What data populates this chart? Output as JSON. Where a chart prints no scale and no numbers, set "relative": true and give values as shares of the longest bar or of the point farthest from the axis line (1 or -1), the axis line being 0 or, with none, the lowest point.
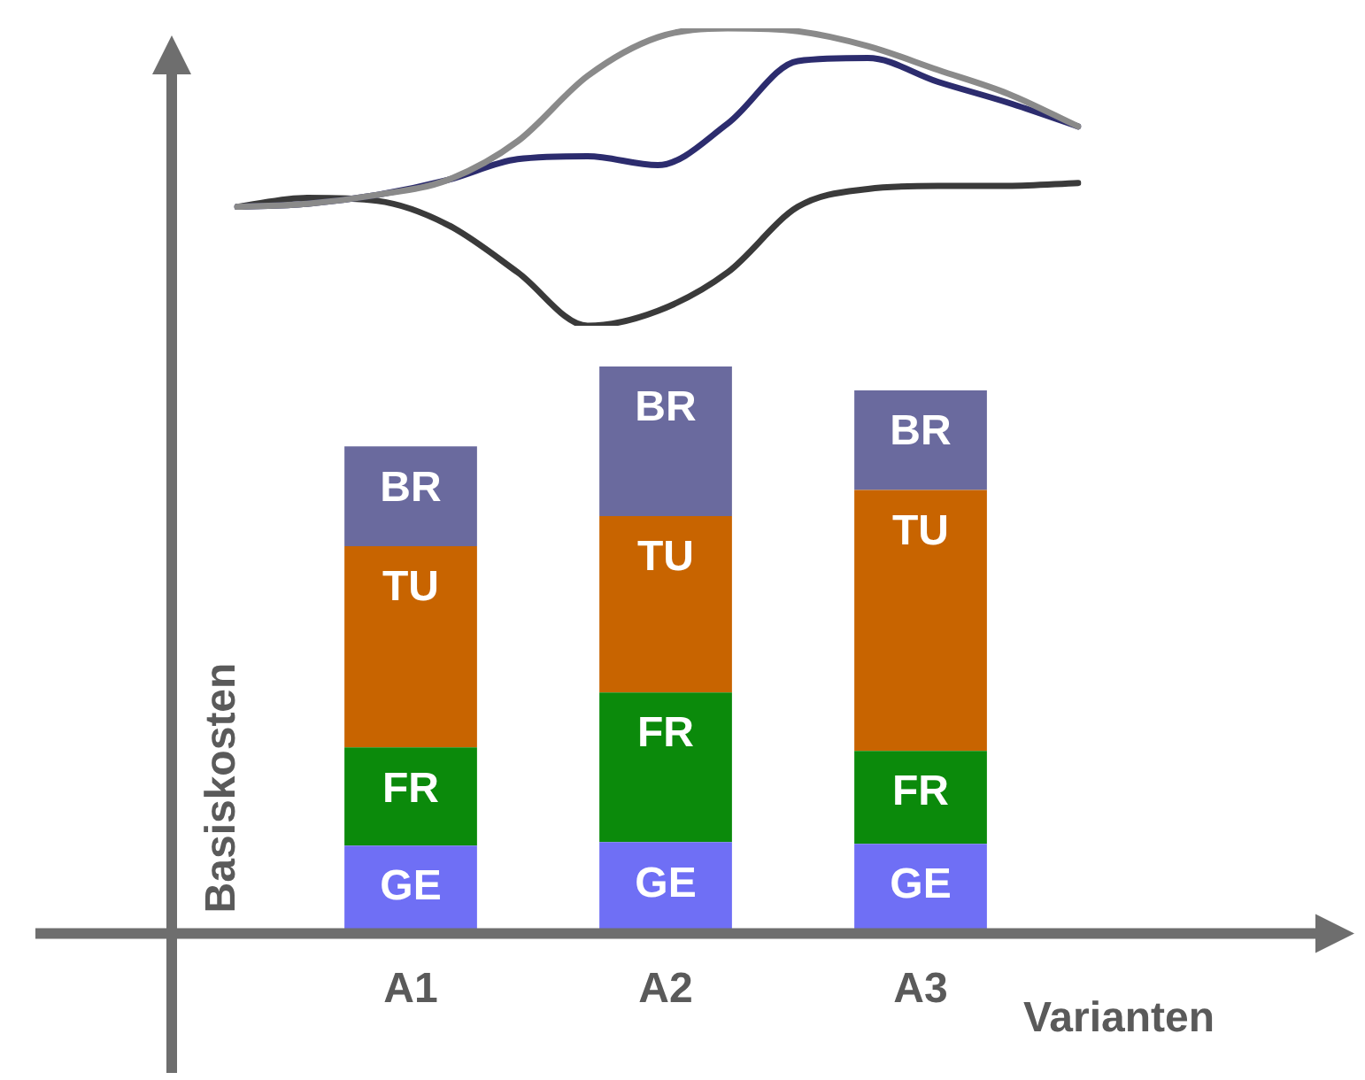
{
  "chart_data": [
    {
      "type": "bar",
      "stacked": true,
      "relative": true,
      "xlabel": "Varianten",
      "ylabel": "Basiskosten",
      "legend": false,
      "categories": [
        "A1",
        "A2",
        "A3"
      ],
      "series": [
        {
          "name": "GE",
          "color": "#6f6ff5",
          "values": [
            0.155,
            0.161,
            0.158
          ]
        },
        {
          "name": "FR",
          "color": "#0b8a0b",
          "values": [
            0.173,
            0.264,
            0.164
          ]
        },
        {
          "name": "TU",
          "color": "#c86400",
          "values": [
            0.355,
            0.311,
            0.46
          ]
        },
        {
          "name": "BR",
          "color": "#6a6a9e",
          "values": [
            0.176,
            0.264,
            0.176
          ]
        }
      ]
    },
    {
      "type": "line",
      "relative": true,
      "legend": false,
      "marker": "none",
      "categories": [
        null,
        null,
        null,
        null,
        null,
        null,
        null,
        null,
        null,
        null,
        null,
        null,
        null
      ],
      "series": [
        {
          "color": "#8a8a8a",
          "values": [
            0.4,
            0.41,
            0.44,
            0.49,
            0.62,
            0.84,
            0.97,
            1.0,
            0.99,
            0.94,
            0.86,
            0.78,
            0.67
          ]
        },
        {
          "color": "#2c2c6e",
          "values": [
            0.4,
            0.41,
            0.44,
            0.49,
            0.56,
            0.57,
            0.54,
            0.68,
            0.89,
            0.9,
            0.82,
            0.75,
            0.67
          ]
        },
        {
          "color": "#3a3a3a",
          "values": [
            0.4,
            0.43,
            0.42,
            0.34,
            0.18,
            0,
            0.05,
            0.18,
            0.4,
            0.46,
            0.47,
            0.47,
            0.48
          ]
        }
      ]
    }
  ]
}
